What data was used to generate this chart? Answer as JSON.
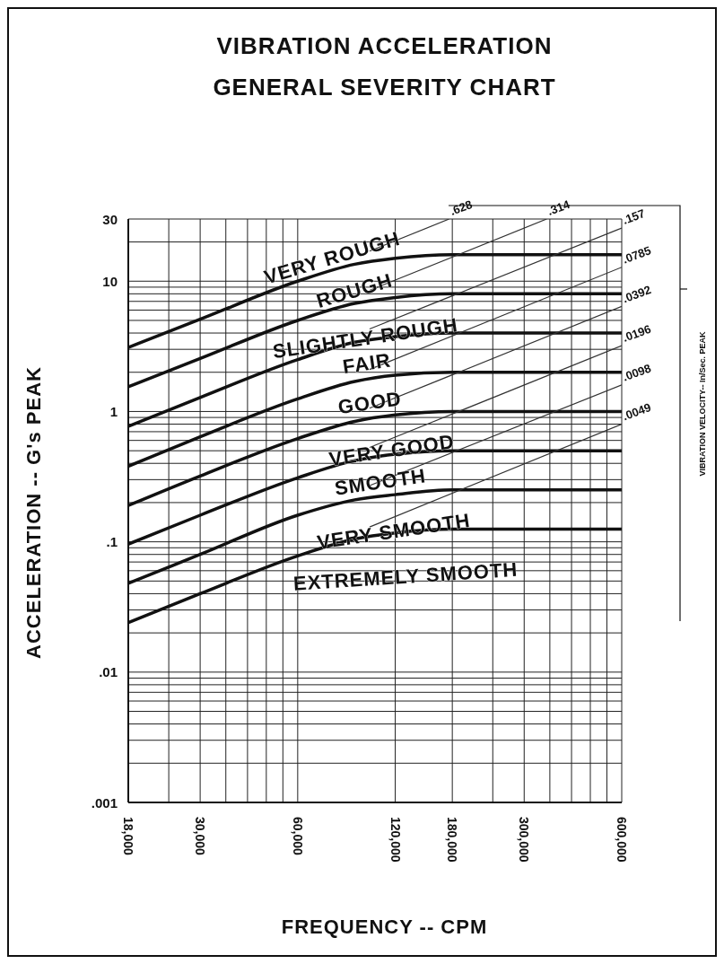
{
  "chart_data": {
    "type": "line",
    "title": "VIBRATION ACCELERATION",
    "subtitle": "GENERAL SEVERITY CHART",
    "xlabel": "FREQUENCY -- CPM",
    "ylabel": "ACCELERATION -- G's PEAK",
    "log": "xy",
    "grid": true,
    "marker": "none",
    "line_style": "solid",
    "xlim": [
      18000,
      600000
    ],
    "ylim": [
      0.001,
      30
    ],
    "xticks": [
      {
        "value": 18000,
        "label": "18,000"
      },
      {
        "value": 24000,
        "label": null
      },
      {
        "value": 30000,
        "label": "30,000"
      },
      {
        "value": 36000,
        "label": null
      },
      {
        "value": 42000,
        "label": null
      },
      {
        "value": 48000,
        "label": null
      },
      {
        "value": 54000,
        "label": null
      },
      {
        "value": 60000,
        "label": "60,000"
      },
      {
        "value": 120000,
        "label": "120,000"
      },
      {
        "value": 180000,
        "label": "180,000"
      },
      {
        "value": 240000,
        "label": null
      },
      {
        "value": 300000,
        "label": "300,000"
      },
      {
        "value": 360000,
        "label": null
      },
      {
        "value": 420000,
        "label": null
      },
      {
        "value": 480000,
        "label": null
      },
      {
        "value": 540000,
        "label": null
      },
      {
        "value": 600000,
        "label": "600,000"
      }
    ],
    "yticks": [
      {
        "value": 0.001,
        "label": ".001"
      },
      {
        "value": 0.002,
        "label": null
      },
      {
        "value": 0.003,
        "label": null
      },
      {
        "value": 0.004,
        "label": null
      },
      {
        "value": 0.005,
        "label": null
      },
      {
        "value": 0.006,
        "label": null
      },
      {
        "value": 0.007,
        "label": null
      },
      {
        "value": 0.008,
        "label": null
      },
      {
        "value": 0.009,
        "label": null
      },
      {
        "value": 0.01,
        "label": ".01"
      },
      {
        "value": 0.02,
        "label": null
      },
      {
        "value": 0.03,
        "label": null
      },
      {
        "value": 0.04,
        "label": null
      },
      {
        "value": 0.05,
        "label": null
      },
      {
        "value": 0.06,
        "label": null
      },
      {
        "value": 0.07,
        "label": null
      },
      {
        "value": 0.08,
        "label": null
      },
      {
        "value": 0.09,
        "label": null
      },
      {
        "value": 0.1,
        "label": ".1"
      },
      {
        "value": 0.2,
        "label": null
      },
      {
        "value": 0.3,
        "label": null
      },
      {
        "value": 0.4,
        "label": null
      },
      {
        "value": 0.5,
        "label": null
      },
      {
        "value": 0.6,
        "label": null
      },
      {
        "value": 0.7,
        "label": null
      },
      {
        "value": 0.8,
        "label": null
      },
      {
        "value": 0.9,
        "label": null
      },
      1,
      {
        "value": 2,
        "label": null
      },
      {
        "value": 3,
        "label": null
      },
      {
        "value": 4,
        "label": null
      },
      {
        "value": 5,
        "label": null
      },
      {
        "value": 6,
        "label": null
      },
      {
        "value": 7,
        "label": null
      },
      {
        "value": 8,
        "label": null
      },
      {
        "value": 9,
        "label": null
      },
      10,
      {
        "value": 20,
        "label": null
      },
      30
    ],
    "x": [
      18000,
      30000,
      60000,
      90000,
      120000,
      180000,
      300000,
      600000
    ],
    "series": [
      {
        "color": "#111111",
        "values": [
          3.1,
          5.1,
          10,
          13.5,
          15,
          16,
          16,
          16
        ]
      },
      {
        "color": "#111111",
        "values": [
          1.55,
          2.55,
          5,
          6.75,
          7.5,
          8,
          8,
          8
        ]
      },
      {
        "color": "#111111",
        "values": [
          0.77,
          1.28,
          2.5,
          3.4,
          3.75,
          4,
          4,
          4
        ]
      },
      {
        "color": "#111111",
        "values": [
          0.38,
          0.64,
          1.25,
          1.7,
          1.9,
          2,
          2,
          2
        ]
      },
      {
        "color": "#111111",
        "values": [
          0.19,
          0.32,
          0.62,
          0.84,
          0.94,
          1,
          1,
          1
        ]
      },
      {
        "color": "#111111",
        "values": [
          0.096,
          0.16,
          0.31,
          0.42,
          0.47,
          0.5,
          0.5,
          0.5
        ]
      },
      {
        "color": "#111111",
        "values": [
          0.048,
          0.08,
          0.16,
          0.21,
          0.23,
          0.25,
          0.25,
          0.25
        ]
      },
      {
        "color": "#111111",
        "values": [
          0.024,
          0.04,
          0.078,
          0.105,
          0.117,
          0.125,
          0.125,
          0.125
        ]
      },
      {
        "name": ".628",
        "color": "#333333",
        "x": [
          100000,
          176000
        ],
        "values": [
          17,
          30
        ]
      },
      {
        "name": ".314",
        "color": "#333333",
        "x": [
          100000,
          352000
        ],
        "values": [
          8.5,
          30
        ]
      },
      {
        "name": ".157",
        "color": "#333333",
        "x": [
          100000,
          600000
        ],
        "values": [
          4.3,
          25.6
        ]
      },
      {
        "name": ".0785",
        "color": "#333333",
        "x": [
          100000,
          600000
        ],
        "values": [
          2.1,
          12.8
        ]
      },
      {
        "name": ".0392",
        "color": "#333333",
        "x": [
          100000,
          600000
        ],
        "values": [
          1.06,
          6.4
        ]
      },
      {
        "name": ".0196",
        "color": "#333333",
        "x": [
          100000,
          600000
        ],
        "values": [
          0.53,
          3.2
        ]
      },
      {
        "name": ".0098",
        "color": "#333333",
        "x": [
          100000,
          600000
        ],
        "values": [
          0.27,
          1.6
        ]
      },
      {
        "name": ".0049",
        "color": "#333333",
        "x": [
          100000,
          600000
        ],
        "values": [
          0.13,
          0.8
        ]
      }
    ],
    "annotations": [
      "VERY ROUGH",
      "ROUGH",
      "SLIGHTLY ROUGH",
      "FAIR",
      "GOOD",
      "VERY GOOD",
      "SMOOTH",
      "VERY SMOOTH",
      "EXTREMELY SMOOTH",
      "VIBRATION VELOCITY-- In/Sec. PEAK"
    ]
  }
}
